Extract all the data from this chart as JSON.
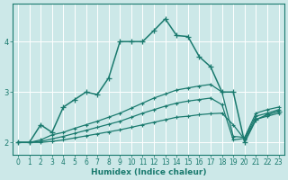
{
  "xlabel": "Humidex (Indice chaleur)",
  "bg_color": "#cce8e8",
  "grid_color": "#aacccc",
  "line_color": "#1a7a6e",
  "xlim": [
    -0.5,
    23.5
  ],
  "ylim": [
    1.75,
    4.75
  ],
  "yticks": [
    2,
    3,
    4
  ],
  "xticks": [
    0,
    1,
    2,
    3,
    4,
    5,
    6,
    7,
    8,
    9,
    10,
    11,
    12,
    13,
    14,
    15,
    16,
    17,
    18,
    19,
    20,
    21,
    22,
    23
  ],
  "curve_main_x": [
    0,
    1,
    2,
    3,
    4,
    5,
    6,
    7,
    8,
    9,
    10,
    11,
    12,
    13,
    14,
    15,
    16,
    17,
    18,
    19,
    20,
    21,
    22,
    23
  ],
  "curve_main_y": [
    2.0,
    2.0,
    2.35,
    2.2,
    2.7,
    2.85,
    3.0,
    2.95,
    3.28,
    4.0,
    4.0,
    4.0,
    4.22,
    4.45,
    4.12,
    4.1,
    3.7,
    3.5,
    3.0,
    3.0,
    2.0,
    2.45,
    2.55,
    2.62
  ],
  "upper_x": [
    0,
    1,
    2,
    3,
    4,
    5,
    6,
    7,
    8,
    9,
    10,
    11,
    12,
    13,
    14,
    15,
    16,
    17,
    18,
    19,
    20,
    21,
    22,
    23
  ],
  "upper_y": [
    2.0,
    2.0,
    2.05,
    2.15,
    2.2,
    2.28,
    2.35,
    2.42,
    2.5,
    2.58,
    2.68,
    2.78,
    2.88,
    2.96,
    3.04,
    3.08,
    3.12,
    3.15,
    3.0,
    2.12,
    2.1,
    2.58,
    2.65,
    2.7
  ],
  "mid_x": [
    0,
    1,
    2,
    3,
    4,
    5,
    6,
    7,
    8,
    9,
    10,
    11,
    12,
    13,
    14,
    15,
    16,
    17,
    18,
    19,
    20,
    21,
    22,
    23
  ],
  "mid_y": [
    2.0,
    2.0,
    2.02,
    2.07,
    2.12,
    2.18,
    2.24,
    2.3,
    2.36,
    2.42,
    2.5,
    2.58,
    2.65,
    2.72,
    2.78,
    2.82,
    2.85,
    2.88,
    2.75,
    2.05,
    2.08,
    2.52,
    2.58,
    2.65
  ],
  "lower_x": [
    0,
    1,
    2,
    3,
    4,
    5,
    6,
    7,
    8,
    9,
    10,
    11,
    12,
    13,
    14,
    15,
    16,
    17,
    18,
    19,
    20,
    21,
    22,
    23
  ],
  "lower_y": [
    2.0,
    2.0,
    2.0,
    2.02,
    2.05,
    2.09,
    2.13,
    2.17,
    2.21,
    2.25,
    2.3,
    2.35,
    2.4,
    2.45,
    2.5,
    2.52,
    2.55,
    2.57,
    2.58,
    2.35,
    2.06,
    2.46,
    2.52,
    2.58
  ]
}
